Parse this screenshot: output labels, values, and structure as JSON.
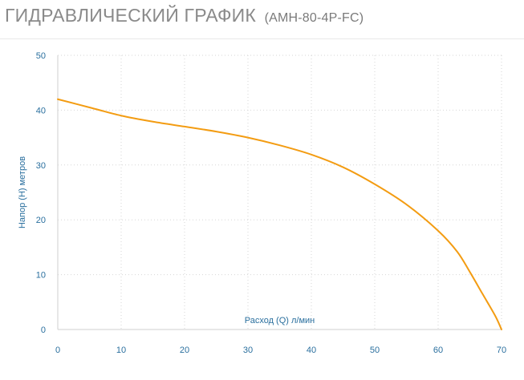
{
  "header": {
    "title": "ГИДРАВЛИЧЕСКИЙ ГРАФИК",
    "model": "(AMH-80-4P-FC)"
  },
  "colors": {
    "series": "#f39c12",
    "axis_text": "#2a6f9e",
    "title": "#8a8a8a"
  },
  "chart_data": {
    "type": "line",
    "title": "",
    "xlabel": "Расход (Q) л/мин",
    "ylabel": "Напор (H) метров",
    "xlim": [
      0,
      70
    ],
    "ylim": [
      0,
      50
    ],
    "xticks": [
      "0",
      "10",
      "20",
      "30",
      "40",
      "50",
      "60",
      "70"
    ],
    "yticks": [
      "0",
      "10",
      "20",
      "30",
      "40",
      "50"
    ],
    "grid": true,
    "legend": "none",
    "series": [
      {
        "x": [
          0,
          5,
          10,
          15,
          20,
          25,
          30,
          35,
          40,
          45,
          50,
          55,
          60,
          63,
          65,
          67,
          69,
          70
        ],
        "y": [
          42,
          40.5,
          39,
          37.9,
          37,
          36.1,
          35,
          33.6,
          31.9,
          29.6,
          26.5,
          22.8,
          18,
          14.2,
          10.5,
          6.5,
          2.5,
          0
        ]
      }
    ]
  }
}
